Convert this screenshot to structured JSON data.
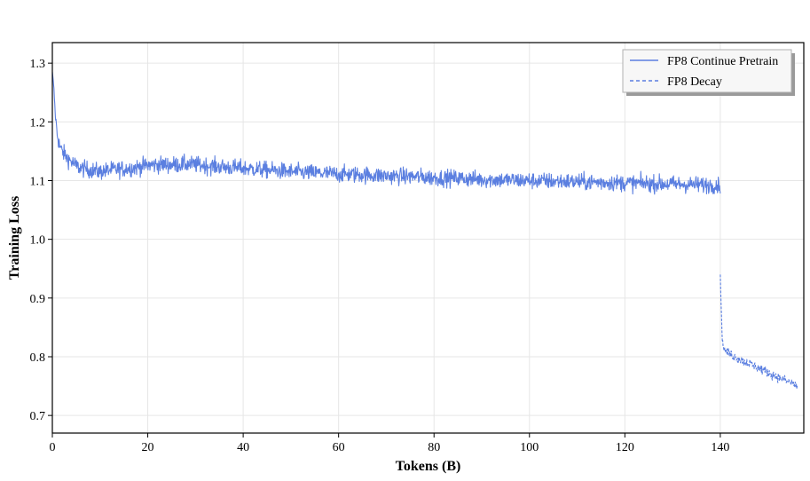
{
  "chart_data": {
    "type": "line",
    "xlabel": "Tokens (B)",
    "ylabel": "Training Loss",
    "xlim": [
      0,
      157.5
    ],
    "ylim": [
      0.67,
      1.335
    ],
    "xticks": [
      0,
      20,
      40,
      60,
      80,
      100,
      120,
      140
    ],
    "yticks": [
      0.7,
      0.8,
      0.9,
      1.0,
      1.1,
      1.2,
      1.3
    ],
    "ytick_labels": [
      "0.7",
      "0.8",
      "0.9",
      "1.0",
      "1.1",
      "1.2",
      "1.3"
    ],
    "grid": true,
    "legend_position": "top-right",
    "line_color": "#5b7fe0",
    "series": [
      {
        "name": "FP8 Continue Pretrain",
        "style": "solid",
        "x": [
          0,
          0.3,
          0.6,
          1,
          1.5,
          2,
          3,
          4,
          5,
          6,
          8,
          10,
          12,
          15,
          18,
          20,
          22,
          25,
          28,
          30,
          33,
          36,
          40,
          45,
          50,
          55,
          60,
          65,
          70,
          75,
          80,
          85,
          90,
          95,
          100,
          105,
          110,
          115,
          120,
          125,
          130,
          135,
          140
        ],
        "y": [
          1.285,
          1.26,
          1.215,
          1.18,
          1.16,
          1.15,
          1.14,
          1.132,
          1.125,
          1.121,
          1.118,
          1.115,
          1.118,
          1.12,
          1.123,
          1.126,
          1.127,
          1.127,
          1.128,
          1.127,
          1.125,
          1.123,
          1.121,
          1.118,
          1.115,
          1.113,
          1.111,
          1.11,
          1.108,
          1.107,
          1.105,
          1.104,
          1.102,
          1.101,
          1.1,
          1.099,
          1.098,
          1.097,
          1.096,
          1.095,
          1.094,
          1.093,
          1.092
        ],
        "noise": 0.011
      },
      {
        "name": "FP8 Decay",
        "style": "dashed",
        "x": [
          140,
          140.2,
          140.4,
          140.7,
          141,
          142,
          143,
          145,
          147,
          149,
          151,
          153,
          155,
          156.2
        ],
        "y": [
          0.94,
          0.88,
          0.83,
          0.815,
          0.81,
          0.805,
          0.8,
          0.792,
          0.785,
          0.777,
          0.769,
          0.762,
          0.755,
          0.75
        ],
        "noise": 0.006
      }
    ]
  }
}
